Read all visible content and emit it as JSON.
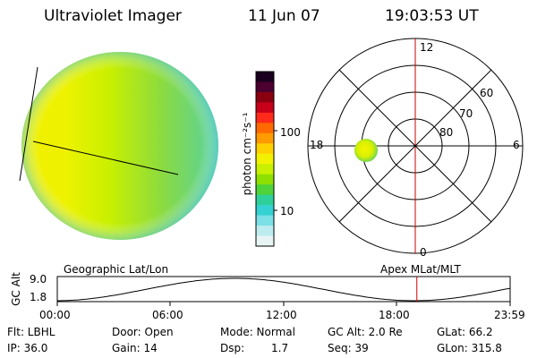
{
  "header": {
    "instrument": "Ultraviolet Imager",
    "date": "11 Jun 07",
    "time": "19:03:53 UT"
  },
  "colorbar": {
    "unit_label": "photon cm⁻²s⁻¹",
    "ticks": [
      "100",
      "10"
    ],
    "colors": [
      "#1a0020",
      "#4b0030",
      "#8a0010",
      "#c8001a",
      "#ff2a1a",
      "#ff6a00",
      "#ff9a00",
      "#ffd000",
      "#f2f200",
      "#c8f000",
      "#8ee000",
      "#4ed33a",
      "#2ed09a",
      "#34d2d2",
      "#7ae0e6",
      "#bcecef",
      "#e8f4f4"
    ]
  },
  "polar": {
    "mlt_labels": [
      "12",
      "18",
      "6",
      "0"
    ],
    "mlat_labels": [
      "60",
      "70",
      "80"
    ]
  },
  "timeline": {
    "left_label": "Geographic Lat/Lon",
    "right_label": "Apex MLat/MLT",
    "axis_label": "GC Alt",
    "y_ticks": [
      "9.0",
      "1.8"
    ],
    "x_ticks": [
      "00:00",
      "06:00",
      "12:00",
      "18:00",
      "23:59"
    ],
    "current_time_fraction": 0.794
  },
  "meta": {
    "filter": "Flt: LBHL",
    "ip": "IP: 36.0",
    "door": "Door: Open",
    "gain": "Gain: 14",
    "mode": "Mode: Normal",
    "dsp_label": "Dsp:",
    "dsp_value": "1.7",
    "gc_alt": "GC Alt: 2.0 Re",
    "seq": "Seq: 39",
    "glat": "GLat:  66.2",
    "glon": "GLon: 315.8"
  }
}
